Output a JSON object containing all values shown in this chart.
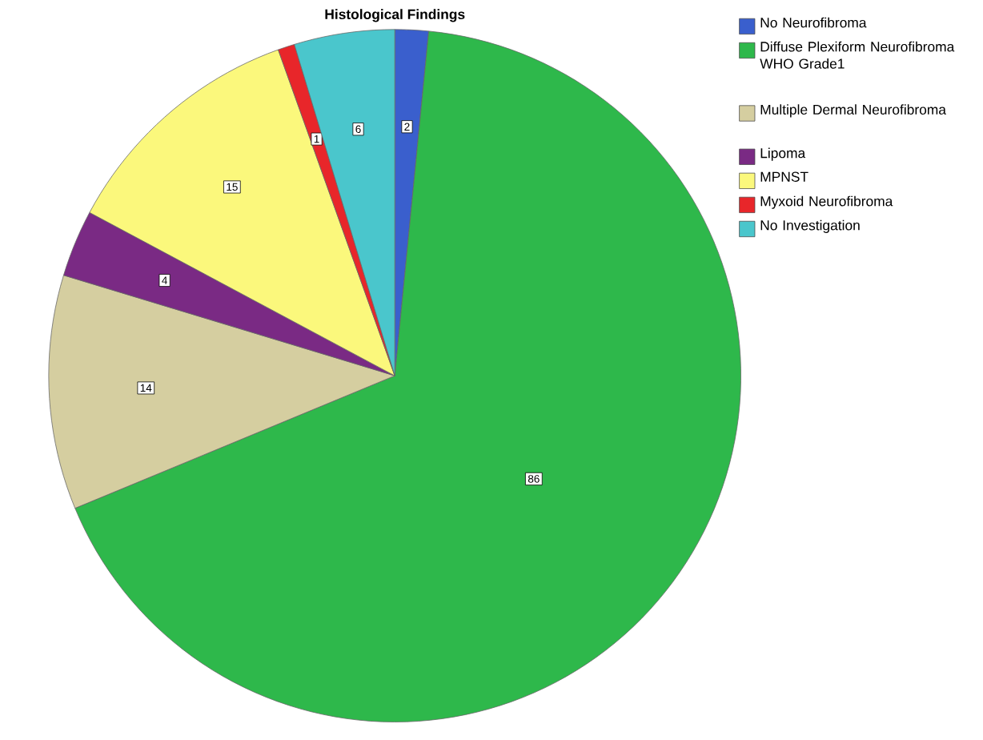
{
  "chart_data": {
    "type": "pie",
    "title": "Histological Findings",
    "categories": [
      "No Neurofibroma",
      "Diffuse Plexiform Neurofibroma WHO Grade1",
      "Multiple Dermal Neurofibroma",
      "Lipoma",
      "MPNST",
      "Myxoid Neurofibroma",
      "No Investigation"
    ],
    "values": [
      2,
      86,
      14,
      4,
      15,
      1,
      6
    ],
    "colors": [
      "#3a5fcd",
      "#2eb84b",
      "#d5cea0",
      "#7a2a84",
      "#fbf87c",
      "#e8262a",
      "#4ac6cc"
    ],
    "data_labels": true,
    "legend": "top right"
  }
}
